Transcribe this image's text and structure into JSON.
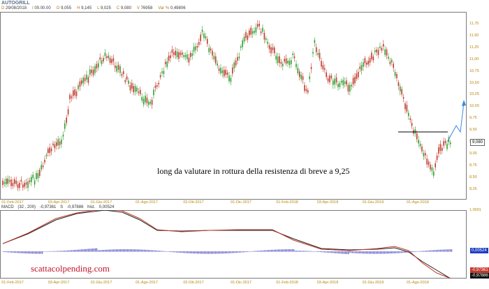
{
  "instrument": {
    "name": "AUTOGRILL",
    "ohlc": [
      {
        "label": "D",
        "value": "29/08/2018"
      },
      {
        "label": "I",
        "value": "00.00.00"
      },
      {
        "label": "O",
        "value": "9,055"
      },
      {
        "label": "H",
        "value": "9,145"
      },
      {
        "label": "L",
        "value": "9,025"
      },
      {
        "label": "C",
        "value": "9,080"
      },
      {
        "label": "V",
        "value": "76958"
      },
      {
        "label": "Var %",
        "value": "0,49806"
      }
    ]
  },
  "price_panel": {
    "y_labels": [
      "11,75",
      "11,50",
      "11,25",
      "11,00",
      "10,75",
      "10,50",
      "10,25",
      "10,00",
      "9,75",
      "9,50",
      "9,25",
      "9,00",
      "8,75",
      "8,50",
      "8,25"
    ],
    "x_labels": [
      "01-Feb-2017",
      "03-Apr-2017",
      "01-Giu-2017",
      "01-Ago-2017",
      "02-Ott-2017",
      "01-Dic-2017",
      "01-Feb-2018",
      "03-Apr-2018",
      "01-Giu-2018",
      "01-Ago-2018"
    ],
    "last_price": "9,080",
    "annotation": "long da valutare in rottura della resistenza di breve a 9,25",
    "colors": {
      "up": "#2e9e2e",
      "down": "#c0392b",
      "resistance": "#000000",
      "arrow": "#3a8ad8"
    }
  },
  "macd_panel": {
    "header": {
      "name": "MACD",
      "params": "(32 , 200)",
      "macd_value": "-0,97361",
      "s_label": "S",
      "signal_value": "-0,97886",
      "hist_label": "hist.",
      "hist_value": "0,00524"
    },
    "y_top": "1,0001",
    "badges": {
      "hist": "0,00524",
      "macd": "-0,97361",
      "signal": "-0,97886"
    },
    "x_labels": [
      "01-Feb-2017",
      "03-Apr-2017",
      "01-Giu-2017",
      "01-Ago-2017",
      "02-Ott-2017",
      "01-Dic-2017",
      "01-Feb-2018",
      "03-Apr-2018",
      "01-Giu-2018",
      "01-Ago-2018"
    ],
    "colors": {
      "macd": "#c0392b",
      "signal": "#222222",
      "hist": "#5d5dc9"
    }
  },
  "watermark": "scattacolpending.com"
}
